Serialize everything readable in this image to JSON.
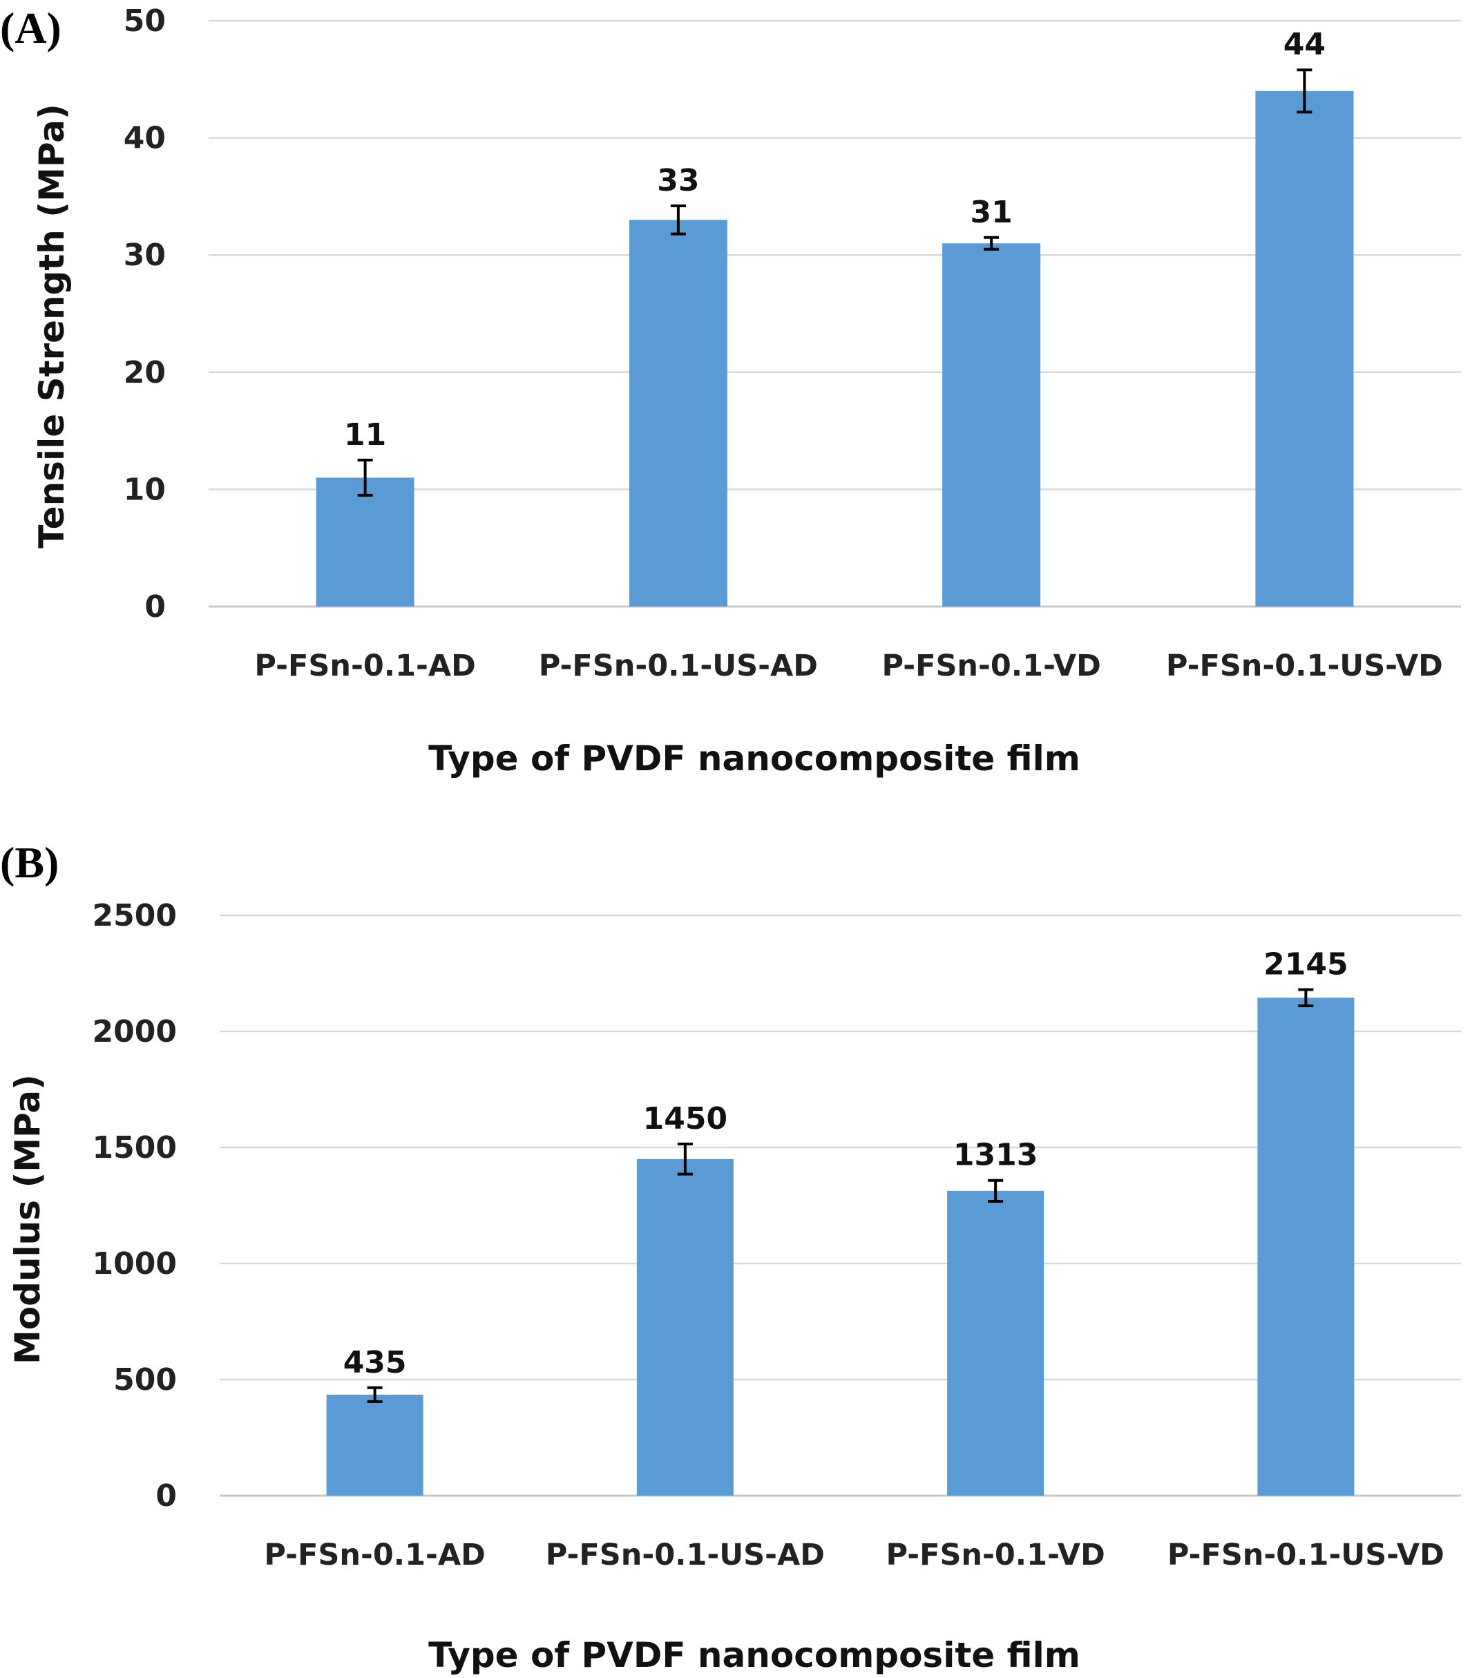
{
  "chart_data": [
    {
      "panel_label": "(A)",
      "type": "bar",
      "categories": [
        "P-FSn-0.1-AD",
        "P-FSn-0.1-US-AD",
        "P-FSn-0.1-VD",
        "P-FSn-0.1-US-VD"
      ],
      "values": [
        11,
        33,
        31,
        44
      ],
      "data_labels": [
        "11",
        "33",
        "31",
        "44"
      ],
      "error": [
        1.5,
        1.2,
        0.5,
        1.8
      ],
      "xlabel": "Type of PVDF nanocomposite  film",
      "ylabel": "Tensile Strength (MPa)",
      "ylim": [
        0,
        50
      ],
      "yticks": [
        0,
        10,
        20,
        30,
        40,
        50
      ],
      "grid": true,
      "bar_color": "#5b9bd5"
    },
    {
      "panel_label": "(B)",
      "type": "bar",
      "categories": [
        "P-FSn-0.1-AD",
        "P-FSn-0.1-US-AD",
        "P-FSn-0.1-VD",
        "P-FSn-0.1-US-VD"
      ],
      "values": [
        435,
        1450,
        1313,
        2145
      ],
      "data_labels": [
        "435",
        "1450",
        "1313",
        "2145"
      ],
      "error": [
        30,
        65,
        45,
        35
      ],
      "xlabel": "Type of PVDF nanocomposite  film",
      "ylabel": "Modulus (MPa)",
      "ylim": [
        0,
        2500
      ],
      "yticks": [
        0,
        500,
        1000,
        1500,
        2000,
        2500
      ],
      "grid": true,
      "bar_color": "#5b9bd5"
    }
  ]
}
